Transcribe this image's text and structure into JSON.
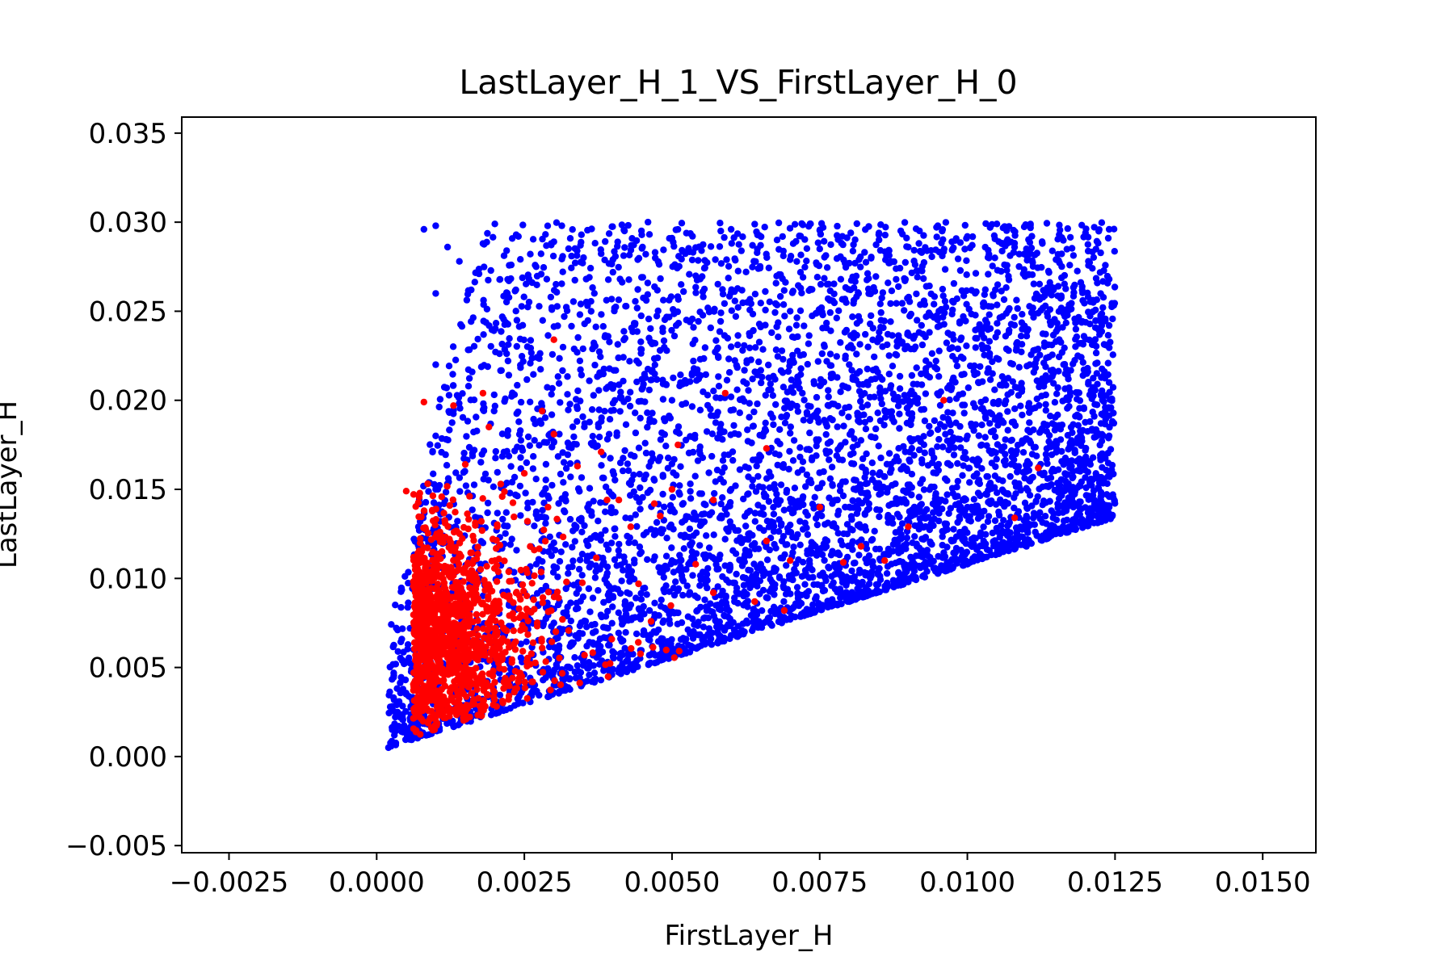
{
  "chart_data": {
    "type": "scatter",
    "title": "LastLayer_H_1_VS_FirstLayer_H_0",
    "xlabel": "FirstLayer_H",
    "ylabel": "LastLayer_H",
    "xlim": [
      -0.0033,
      0.0159
    ],
    "ylim": [
      -0.0054,
      0.0359
    ],
    "xticks": [
      -0.0025,
      0.0,
      0.0025,
      0.005,
      0.0075,
      0.01,
      0.0125,
      0.015
    ],
    "yticks": [
      -0.005,
      0.0,
      0.005,
      0.01,
      0.015,
      0.02,
      0.025,
      0.03,
      0.035
    ],
    "xtick_labels": [
      "−0.0025",
      "0.0000",
      "0.0025",
      "0.0050",
      "0.0075",
      "0.0100",
      "0.0125",
      "0.0150"
    ],
    "ytick_labels": [
      "−0.005",
      "0.000",
      "0.005",
      "0.010",
      "0.015",
      "0.020",
      "0.025",
      "0.030",
      "0.035"
    ],
    "grid": false,
    "legend": "none",
    "series": [
      {
        "color": "#0000ff",
        "values": [
          [
            0.0002,
            0.0005
          ],
          [
            0.0003,
            0.0012
          ],
          [
            0.0004,
            0.0022
          ],
          [
            0.0005,
            0.0035
          ],
          [
            0.0006,
            0.0052
          ],
          [
            0.0007,
            0.0072
          ],
          [
            0.0008,
            0.0095
          ],
          [
            0.0009,
            0.012
          ],
          [
            0.001,
            0.015
          ],
          [
            0.001,
            0.018
          ],
          [
            0.001,
            0.022
          ],
          [
            0.001,
            0.026
          ],
          [
            0.001,
            0.0298
          ],
          [
            0.0008,
            0.0296
          ],
          [
            0.0012,
            0.0286
          ],
          [
            0.0014,
            0.0278
          ],
          [
            0.0016,
            0.0262
          ],
          [
            0.0018,
            0.0288
          ],
          [
            0.002,
            0.0299
          ],
          [
            0.0022,
            0.0284
          ],
          [
            0.0024,
            0.0292
          ],
          [
            0.0027,
            0.0275
          ],
          [
            0.003,
            0.0289
          ],
          [
            0.0033,
            0.0281
          ],
          [
            0.0036,
            0.0269
          ],
          [
            0.004,
            0.0279
          ],
          [
            0.0045,
            0.0286
          ],
          [
            0.005,
            0.0291
          ],
          [
            0.0055,
            0.0284
          ],
          [
            0.006,
            0.0296
          ],
          [
            0.0065,
            0.0287
          ],
          [
            0.007,
            0.0279
          ],
          [
            0.0075,
            0.0285
          ],
          [
            0.008,
            0.0277
          ],
          [
            0.0085,
            0.0293
          ],
          [
            0.009,
            0.0286
          ],
          [
            0.0095,
            0.0298
          ],
          [
            0.01,
            0.0292
          ],
          [
            0.0105,
            0.0299
          ],
          [
            0.011,
            0.0285
          ],
          [
            0.0115,
            0.0279
          ],
          [
            0.012,
            0.0294
          ],
          [
            0.0124,
            0.0296
          ],
          [
            0.0124,
            0.0268
          ],
          [
            0.0124,
            0.0242
          ],
          [
            0.0124,
            0.021
          ],
          [
            0.0124,
            0.018
          ],
          [
            0.0124,
            0.016
          ],
          [
            0.0124,
            0.014
          ],
          [
            0.012,
            0.0132
          ],
          [
            0.011,
            0.0118
          ],
          [
            0.01,
            0.0108
          ],
          [
            0.009,
            0.0098
          ],
          [
            0.008,
            0.0087
          ],
          [
            0.007,
            0.0077
          ],
          [
            0.006,
            0.0068
          ],
          [
            0.005,
            0.0058
          ],
          [
            0.004,
            0.0049
          ],
          [
            0.003,
            0.004
          ],
          [
            0.002,
            0.003
          ],
          [
            0.0012,
            0.002
          ],
          [
            0.0006,
            0.001
          ],
          [
            0.003,
            0.012
          ],
          [
            0.004,
            0.016
          ],
          [
            0.005,
            0.02
          ],
          [
            0.006,
            0.023
          ],
          [
            0.007,
            0.025
          ],
          [
            0.008,
            0.022
          ],
          [
            0.009,
            0.02
          ],
          [
            0.01,
            0.018
          ],
          [
            0.011,
            0.016
          ],
          [
            0.006,
            0.015
          ],
          [
            0.007,
            0.013
          ],
          [
            0.008,
            0.014
          ],
          [
            0.009,
            0.015
          ],
          [
            0.01,
            0.014
          ],
          [
            0.011,
            0.0135
          ],
          [
            0.005,
            0.011
          ],
          [
            0.004,
            0.009
          ],
          [
            0.003,
            0.0075
          ]
        ],
        "density": [
          {
            "x": [
              0.0002,
              0.0125
            ],
            "y_low_base": 0.0003,
            "y_low_slope": 1.05,
            "y_high_base": 0.004,
            "y_high_slope": 15.0,
            "y_cap": 0.03,
            "count": 5200
          }
        ]
      },
      {
        "color": "#ff0000",
        "values": [
          [
            0.0008,
            0.0199
          ],
          [
            0.0013,
            0.0197
          ],
          [
            0.0018,
            0.0204
          ],
          [
            0.0019,
            0.0185
          ],
          [
            0.0028,
            0.0194
          ],
          [
            0.003,
            0.0234
          ],
          [
            0.003,
            0.0181
          ],
          [
            0.0034,
            0.0163
          ],
          [
            0.0038,
            0.0171
          ],
          [
            0.0059,
            0.0204
          ],
          [
            0.0051,
            0.0175
          ],
          [
            0.0066,
            0.0173
          ],
          [
            0.0096,
            0.02
          ],
          [
            0.0112,
            0.0162
          ],
          [
            0.0108,
            0.0134
          ],
          [
            0.009,
            0.0129
          ],
          [
            0.0082,
            0.0118
          ],
          [
            0.0086,
            0.011
          ],
          [
            0.0079,
            0.0109
          ],
          [
            0.007,
            0.011
          ],
          [
            0.0066,
            0.0121
          ],
          [
            0.0069,
            0.0082
          ],
          [
            0.0064,
            0.0087
          ],
          [
            0.0057,
            0.0092
          ],
          [
            0.0054,
            0.0108
          ],
          [
            0.0048,
            0.0135
          ],
          [
            0.0047,
            0.0142
          ],
          [
            0.0043,
            0.0129
          ],
          [
            0.0041,
            0.0144
          ],
          [
            0.0039,
            0.0144
          ],
          [
            0.0029,
            0.014
          ],
          [
            0.0025,
            0.0159
          ],
          [
            0.0021,
            0.0153
          ],
          [
            0.0015,
            0.0164
          ],
          [
            0.0005,
            0.0149
          ],
          [
            0.0075,
            0.014
          ],
          [
            0.0057,
            0.0144
          ],
          [
            0.005,
            0.015
          ]
        ],
        "density": [
          {
            "cx": 0.0009,
            "cy": 0.007,
            "sx": 0.0008,
            "sy": 0.003,
            "count": 1300
          }
        ]
      }
    ]
  }
}
